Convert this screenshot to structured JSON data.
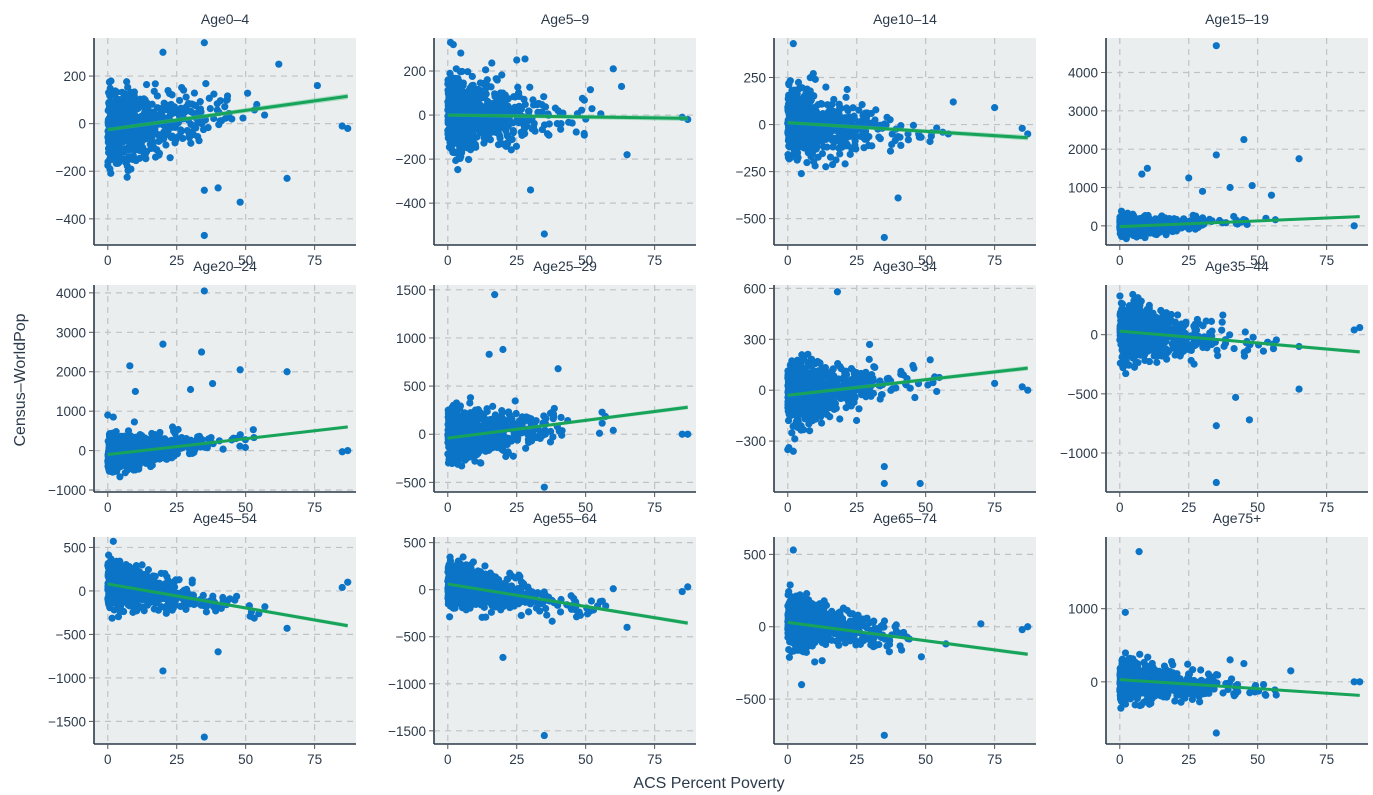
{
  "figure": {
    "xlabel": "ACS Percent Poverty",
    "ylabel": "Census–WorldPop"
  },
  "colors": {
    "points": "#0b74c6",
    "fit_line": "#17a45a",
    "band": "#55c58a",
    "panel_bg": "#ebeeef"
  },
  "chart_data": [
    {
      "type": "scatter",
      "title": "Age0–4",
      "xlim": [
        -5,
        90
      ],
      "ylim": [
        -510,
        360
      ],
      "xticks": [
        0,
        25,
        50,
        75
      ],
      "xticklabels": [
        "0",
        "25",
        "50",
        "75"
      ],
      "yticks": [
        -400,
        -200,
        0,
        200
      ],
      "yticklabels": [
        "−400",
        "−200",
        "0",
        "200"
      ],
      "fit": {
        "x": [
          0,
          87
        ],
        "y": [
          -25,
          115
        ],
        "band": 12
      },
      "spread": 75,
      "n": 750,
      "outliers": [
        [
          20,
          300
        ],
        [
          35,
          340
        ],
        [
          35,
          -470
        ],
        [
          48,
          -330
        ],
        [
          85,
          -10
        ],
        [
          87,
          -20
        ],
        [
          62,
          250
        ],
        [
          76,
          160
        ],
        [
          35,
          -280
        ],
        [
          40,
          -270
        ],
        [
          65,
          -230
        ]
      ]
    },
    {
      "type": "scatter",
      "title": "Age5–9",
      "xlim": [
        -5,
        90
      ],
      "ylim": [
        -590,
        350
      ],
      "xticks": [
        0,
        25,
        50,
        75
      ],
      "xticklabels": [
        "0",
        "25",
        "50",
        "75"
      ],
      "yticks": [
        -400,
        -200,
        0,
        200
      ],
      "yticklabels": [
        "−400",
        "−200",
        "0",
        "200"
      ],
      "fit": {
        "x": [
          0,
          87
        ],
        "y": [
          0,
          -15
        ],
        "band": 12
      },
      "spread": 80,
      "n": 750,
      "outliers": [
        [
          1,
          330
        ],
        [
          2,
          320
        ],
        [
          35,
          -540
        ],
        [
          30,
          -340
        ],
        [
          60,
          210
        ],
        [
          63,
          130
        ],
        [
          85,
          -10
        ],
        [
          87,
          -20
        ],
        [
          25,
          250
        ],
        [
          28,
          255
        ],
        [
          65,
          -180
        ]
      ]
    },
    {
      "type": "scatter",
      "title": "Age10–14",
      "xlim": [
        -5,
        90
      ],
      "ylim": [
        -640,
        460
      ],
      "xticks": [
        0,
        25,
        50,
        75
      ],
      "xticklabels": [
        "0",
        "25",
        "50",
        "75"
      ],
      "yticks": [
        -500,
        -250,
        0,
        250
      ],
      "yticklabels": [
        "−500",
        "−250",
        "0",
        "250"
      ],
      "fit": {
        "x": [
          0,
          87
        ],
        "y": [
          10,
          -70
        ],
        "band": 14
      },
      "spread": 85,
      "n": 750,
      "outliers": [
        [
          2,
          430
        ],
        [
          35,
          -600
        ],
        [
          40,
          -390
        ],
        [
          87,
          -50
        ],
        [
          85,
          -20
        ],
        [
          75,
          90
        ],
        [
          60,
          120
        ]
      ]
    },
    {
      "type": "scatter",
      "title": "Age15–19",
      "xlim": [
        -5,
        90
      ],
      "ylim": [
        -500,
        4900
      ],
      "xticks": [
        0,
        25,
        50,
        75
      ],
      "xticklabels": [
        "0",
        "25",
        "50",
        "75"
      ],
      "yticks": [
        0,
        1000,
        2000,
        3000,
        4000
      ],
      "yticklabels": [
        "0",
        "1000",
        "2000",
        "3000",
        "4000"
      ],
      "fit": {
        "x": [
          0,
          87
        ],
        "y": [
          -20,
          240
        ],
        "band": 40
      },
      "spread": 120,
      "n": 650,
      "outliers": [
        [
          35,
          4700
        ],
        [
          45,
          2250
        ],
        [
          65,
          1750
        ],
        [
          35,
          1850
        ],
        [
          10,
          1500
        ],
        [
          8,
          1350
        ],
        [
          40,
          1000
        ],
        [
          48,
          1050
        ],
        [
          55,
          800
        ],
        [
          25,
          1250
        ],
        [
          30,
          900
        ],
        [
          85,
          0
        ]
      ]
    },
    {
      "type": "scatter",
      "title": "Age20–24",
      "xlim": [
        -5,
        90
      ],
      "ylim": [
        -1050,
        4200
      ],
      "xticks": [
        0,
        25,
        50,
        75
      ],
      "xticklabels": [
        "0",
        "25",
        "50",
        "75"
      ],
      "yticks": [
        -1000,
        0,
        1000,
        2000,
        3000,
        4000
      ],
      "yticklabels": [
        "−1000",
        "0",
        "1000",
        "2000",
        "3000",
        "4000"
      ],
      "fit": {
        "x": [
          0,
          87
        ],
        "y": [
          -100,
          600
        ],
        "band": 45
      },
      "spread": 210,
      "n": 700,
      "outliers": [
        [
          35,
          4050
        ],
        [
          20,
          2700
        ],
        [
          34,
          2500
        ],
        [
          8,
          2150
        ],
        [
          48,
          2050
        ],
        [
          65,
          2000
        ],
        [
          38,
          1700
        ],
        [
          30,
          1550
        ],
        [
          10,
          1500
        ],
        [
          0,
          900
        ],
        [
          2,
          850
        ],
        [
          87,
          0
        ],
        [
          85,
          -30
        ]
      ]
    },
    {
      "type": "scatter",
      "title": "Age25–29",
      "xlim": [
        -5,
        90
      ],
      "ylim": [
        -600,
        1550
      ],
      "xticks": [
        0,
        25,
        50,
        75
      ],
      "xticklabels": [
        "0",
        "25",
        "50",
        "75"
      ],
      "yticks": [
        -500,
        0,
        500,
        1000,
        1500
      ],
      "yticklabels": [
        "−500",
        "0",
        "500",
        "1000",
        "1500"
      ],
      "fit": {
        "x": [
          0,
          87
        ],
        "y": [
          -40,
          280
        ],
        "band": 22
      },
      "spread": 130,
      "n": 750,
      "outliers": [
        [
          17,
          1450
        ],
        [
          20,
          880
        ],
        [
          15,
          830
        ],
        [
          40,
          680
        ],
        [
          35,
          -550
        ],
        [
          85,
          0
        ],
        [
          87,
          0
        ],
        [
          60,
          40
        ],
        [
          55,
          10
        ]
      ]
    },
    {
      "type": "scatter",
      "title": "Age30–34",
      "xlim": [
        -5,
        90
      ],
      "ylim": [
        -600,
        620
      ],
      "xticks": [
        0,
        25,
        50,
        75
      ],
      "xticklabels": [
        "0",
        "25",
        "50",
        "75"
      ],
      "yticks": [
        -300,
        0,
        300,
        600
      ],
      "yticklabels": [
        "−300",
        "0",
        "300",
        "600"
      ],
      "fit": {
        "x": [
          0,
          87
        ],
        "y": [
          -30,
          130
        ],
        "band": 14
      },
      "spread": 90,
      "n": 750,
      "outliers": [
        [
          18,
          580
        ],
        [
          35,
          -550
        ],
        [
          48,
          -550
        ],
        [
          35,
          -450
        ],
        [
          0,
          -350
        ],
        [
          2,
          -360
        ],
        [
          87,
          0
        ],
        [
          85,
          20
        ],
        [
          75,
          40
        ]
      ]
    },
    {
      "type": "scatter",
      "title": "Age35–44",
      "xlim": [
        -5,
        90
      ],
      "ylim": [
        -1330,
        420
      ],
      "xticks": [
        0,
        25,
        50,
        75
      ],
      "xticklabels": [
        "0",
        "25",
        "50",
        "75"
      ],
      "yticks": [
        -1000,
        -500,
        0
      ],
      "yticklabels": [
        "−1000",
        "−500",
        "0"
      ],
      "fit": {
        "x": [
          0,
          87
        ],
        "y": [
          30,
          -145
        ],
        "band": 16
      },
      "spread": 115,
      "n": 750,
      "outliers": [
        [
          35,
          -1250
        ],
        [
          35,
          -770
        ],
        [
          42,
          -530
        ],
        [
          47,
          -720
        ],
        [
          65,
          -460
        ],
        [
          87,
          60
        ],
        [
          85,
          40
        ],
        [
          65,
          -100
        ]
      ]
    },
    {
      "type": "scatter",
      "title": "Age45–54",
      "xlim": [
        -5,
        90
      ],
      "ylim": [
        -1760,
        620
      ],
      "xticks": [
        0,
        25,
        50,
        75
      ],
      "xticklabels": [
        "0",
        "25",
        "50",
        "75"
      ],
      "yticks": [
        -1500,
        -1000,
        -500,
        0,
        500
      ],
      "yticklabels": [
        "−1500",
        "−1000",
        "−500",
        "0",
        "500"
      ],
      "fit": {
        "x": [
          0,
          87
        ],
        "y": [
          80,
          -400
        ],
        "band": 24
      },
      "spread": 120,
      "n": 750,
      "outliers": [
        [
          35,
          -1680
        ],
        [
          20,
          -920
        ],
        [
          2,
          570
        ],
        [
          87,
          100
        ],
        [
          85,
          40
        ],
        [
          65,
          -430
        ],
        [
          40,
          -700
        ]
      ]
    },
    {
      "type": "scatter",
      "title": "Age55–64",
      "xlim": [
        -5,
        90
      ],
      "ylim": [
        -1640,
        560
      ],
      "xticks": [
        0,
        25,
        50,
        75
      ],
      "xticklabels": [
        "0",
        "25",
        "50",
        "75"
      ],
      "yticks": [
        -1500,
        -1000,
        -500,
        0,
        500
      ],
      "yticklabels": [
        "−1500",
        "−1000",
        "−500",
        "0",
        "500"
      ],
      "fit": {
        "x": [
          0,
          87
        ],
        "y": [
          60,
          -355
        ],
        "band": 22
      },
      "spread": 110,
      "n": 750,
      "outliers": [
        [
          35,
          -1550
        ],
        [
          20,
          -720
        ],
        [
          87,
          30
        ],
        [
          85,
          -20
        ],
        [
          65,
          -400
        ],
        [
          60,
          10
        ]
      ]
    },
    {
      "type": "scatter",
      "title": "Age65–74",
      "xlim": [
        -5,
        90
      ],
      "ylim": [
        -810,
        620
      ],
      "xticks": [
        0,
        25,
        50,
        75
      ],
      "xticklabels": [
        "0",
        "25",
        "50",
        "75"
      ],
      "yticks": [
        -500,
        0,
        500
      ],
      "yticklabels": [
        "−500",
        "0",
        "500"
      ],
      "fit": {
        "x": [
          0,
          87
        ],
        "y": [
          30,
          -190
        ],
        "band": 14
      },
      "spread": 80,
      "n": 750,
      "outliers": [
        [
          2,
          530
        ],
        [
          35,
          -750
        ],
        [
          5,
          -400
        ],
        [
          87,
          0
        ],
        [
          85,
          -20
        ],
        [
          70,
          20
        ]
      ]
    },
    {
      "type": "scatter",
      "title": "Age75+",
      "xlim": [
        -5,
        90
      ],
      "ylim": [
        -850,
        1980
      ],
      "xticks": [
        0,
        25,
        50,
        75
      ],
      "xticklabels": [
        "0",
        "25",
        "50",
        "75"
      ],
      "yticks": [
        0,
        1000
      ],
      "yticklabels": [
        "0",
        "1000"
      ],
      "fit": {
        "x": [
          0,
          87
        ],
        "y": [
          30,
          -185
        ],
        "band": 16
      },
      "spread": 140,
      "n": 750,
      "outliers": [
        [
          7,
          1780
        ],
        [
          2,
          950
        ],
        [
          35,
          -700
        ],
        [
          87,
          0
        ],
        [
          85,
          0
        ],
        [
          62,
          150
        ],
        [
          40,
          300
        ],
        [
          45,
          250
        ]
      ]
    }
  ]
}
